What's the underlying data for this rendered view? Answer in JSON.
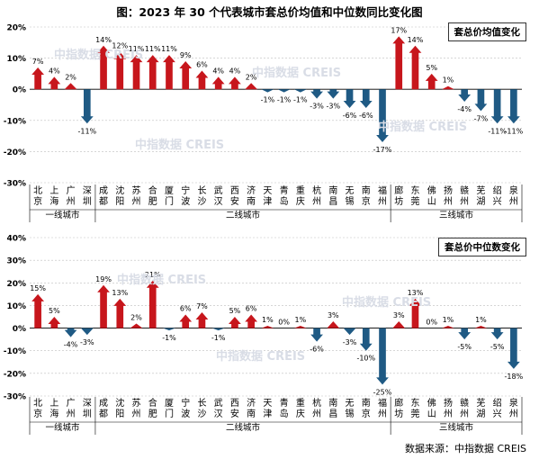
{
  "title": "图：2023 年 30 个代表城市套总价均值和中位数同比变化图",
  "source": "数据来源：中指数据 CREIS",
  "watermark": "中指数据 CREIS",
  "colors": {
    "positive": "#c7161c",
    "negative": "#1f5a84",
    "axis": "#000000",
    "grid": "#bfbfbf",
    "text": "#000000"
  },
  "chart_data": [
    {
      "type": "bar",
      "title": "",
      "legend_label": "套总价均值变化",
      "ylim": [
        -30,
        20
      ],
      "yticks": [
        "20%",
        "10%",
        "0%",
        "-10%",
        "-20%",
        "-30%"
      ],
      "ytick_values": [
        20,
        10,
        0,
        -10,
        -20,
        -30
      ],
      "grid": true,
      "groups": [
        {
          "name": "一线城市",
          "categories": [
            "北京",
            "上海",
            "广州",
            "深圳"
          ]
        },
        {
          "name": "二线城市",
          "categories": [
            "成都",
            "沈阳",
            "苏州",
            "合肥",
            "厦门",
            "宁波",
            "长沙",
            "武汉",
            "西安",
            "济南",
            "天津",
            "青岛",
            "重庆",
            "杭州",
            "南昌",
            "无锡",
            "南京",
            "福州"
          ]
        },
        {
          "name": "三线城市",
          "categories": [
            "廊坊",
            "东莞",
            "佛山",
            "扬州",
            "赣州",
            "芜湖",
            "绍兴",
            "泉州"
          ]
        }
      ],
      "categories": [
        "北京",
        "上海",
        "广州",
        "深圳",
        "成都",
        "沈阳",
        "苏州",
        "合肥",
        "厦门",
        "宁波",
        "长沙",
        "武汉",
        "西安",
        "济南",
        "天津",
        "青岛",
        "重庆",
        "杭州",
        "南昌",
        "无锡",
        "南京",
        "福州",
        "廊坊",
        "东莞",
        "佛山",
        "扬州",
        "赣州",
        "芜湖",
        "绍兴",
        "泉州"
      ],
      "values": [
        7,
        4,
        2,
        -11,
        14,
        12,
        11,
        11,
        11,
        9,
        6,
        4,
        4,
        2,
        -1,
        -1,
        -1,
        -3,
        -3,
        -6,
        -6,
        -17,
        17,
        14,
        5,
        1,
        -4,
        -7,
        -11,
        -11
      ],
      "labels": [
        "7%",
        "4%",
        "2%",
        "-11%",
        "14%",
        "12%",
        "11%",
        "11%",
        "11%",
        "9%",
        "6%",
        "4%",
        "4%",
        "2%",
        "-1%",
        "-1%",
        "-1%",
        "-3%",
        "-3%",
        "-6%",
        "-6%",
        "-17%",
        "17%",
        "14%",
        "5%",
        "1%",
        "-4%",
        "-7%",
        "-11%",
        "-11%"
      ]
    },
    {
      "type": "bar",
      "title": "",
      "legend_label": "套总价中位数变化",
      "ylim": [
        -30,
        40
      ],
      "yticks": [
        "40%",
        "30%",
        "20%",
        "10%",
        "0%",
        "-10%",
        "-20%",
        "-30%"
      ],
      "ytick_values": [
        40,
        30,
        20,
        10,
        0,
        -10,
        -20,
        -30
      ],
      "grid": true,
      "groups": [
        {
          "name": "一线城市",
          "categories": [
            "北京",
            "上海",
            "广州",
            "深圳"
          ]
        },
        {
          "name": "二线城市",
          "categories": [
            "成都",
            "沈阳",
            "苏州",
            "合肥",
            "厦门",
            "宁波",
            "长沙",
            "武汉",
            "西安",
            "济南",
            "天津",
            "青岛",
            "重庆",
            "杭州",
            "南昌",
            "无锡",
            "南京",
            "福州"
          ]
        },
        {
          "name": "三线城市",
          "categories": [
            "廊坊",
            "东莞",
            "佛山",
            "扬州",
            "赣州",
            "芜湖",
            "绍兴",
            "泉州"
          ]
        }
      ],
      "categories": [
        "北京",
        "上海",
        "广州",
        "深圳",
        "成都",
        "沈阳",
        "苏州",
        "合肥",
        "厦门",
        "宁波",
        "长沙",
        "武汉",
        "西安",
        "济南",
        "天津",
        "青岛",
        "重庆",
        "杭州",
        "南昌",
        "无锡",
        "南京",
        "福州",
        "廊坊",
        "东莞",
        "佛山",
        "扬州",
        "赣州",
        "芜湖",
        "绍兴",
        "泉州"
      ],
      "values": [
        15,
        5,
        -4,
        -3,
        19,
        13,
        2,
        21,
        -1,
        6,
        7,
        -1,
        5,
        6,
        1,
        0,
        1,
        -6,
        3,
        -3,
        -10,
        -25,
        3,
        13,
        0,
        1,
        -5,
        1,
        -5,
        -18
      ],
      "labels": [
        "15%",
        "5%",
        "-4%",
        "-3%",
        "19%",
        "13%",
        "2%",
        "21%",
        "-1%",
        "6%",
        "7%",
        "-1%",
        "5%",
        "6%",
        "1%",
        "0%",
        "1%",
        "-6%",
        "3%",
        "-3%",
        "-10%",
        "-25%",
        "3%",
        "13%",
        "0%",
        "1%",
        "-5%",
        "1%",
        "-5%",
        "-18%"
      ]
    }
  ]
}
